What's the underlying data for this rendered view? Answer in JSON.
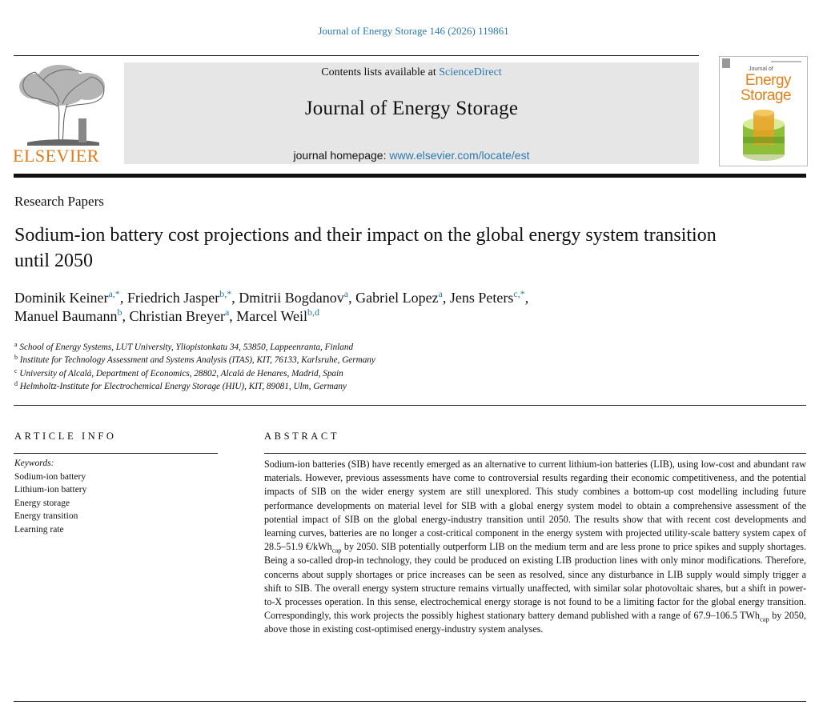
{
  "citation": "Journal of Energy Storage 146 (2026) 119861",
  "header": {
    "publisher_logo_text": "ELSEVIER",
    "contents_prefix": "Contents lists available at ",
    "contents_link": "ScienceDirect",
    "journal_title": "Journal of Energy Storage",
    "homepage_prefix": "journal homepage: ",
    "homepage_link": "www.elsevier.com/locate/est",
    "cover_title_line1": "Energy",
    "cover_title_line2": "Storage",
    "cover_prefix": "Journal of"
  },
  "section": "Research Papers",
  "title": "Sodium-ion battery cost projections and their impact on the global energy system transition until 2050",
  "authors": [
    {
      "name": "Dominik Keiner",
      "sup": "a,*",
      "sep": ", "
    },
    {
      "name": "Friedrich Jasper",
      "sup": "b,*",
      "sep": ", "
    },
    {
      "name": "Dmitrii Bogdanov",
      "sup": "a",
      "sep": ", "
    },
    {
      "name": "Gabriel Lopez",
      "sup": "a",
      "sep": ", "
    },
    {
      "name": "Jens Peters",
      "sup": "c,*",
      "sep": ","
    },
    {
      "name": "Manuel Baumann",
      "sup": "b",
      "sep": ", "
    },
    {
      "name": "Christian Breyer",
      "sup": "a",
      "sep": ", "
    },
    {
      "name": "Marcel Weil",
      "sup": "b,d",
      "sep": ""
    }
  ],
  "affiliations": [
    {
      "sup": "a",
      "text": "School of Energy Systems, LUT University, Yliopistonkatu 34, 53850, Lappeenranta, Finland"
    },
    {
      "sup": "b",
      "text": "Institute for Technology Assessment and Systems Analysis (ITAS), KIT, 76133, Karlsruhe, Germany"
    },
    {
      "sup": "c",
      "text": "University of Alcalá, Department of Economics, 28802, Alcalá de Henares, Madrid, Spain"
    },
    {
      "sup": "d",
      "text": "Helmholtz-Institute for Electrochemical Energy Storage (HIU), KIT, 89081, Ulm, Germany"
    }
  ],
  "article_info": {
    "heading": "ARTICLE INFO",
    "keywords_label": "Keywords:",
    "keywords": [
      "Sodium-ion battery",
      "Lithium-ion battery",
      "Energy storage",
      "Energy transition",
      "Learning rate"
    ]
  },
  "abstract": {
    "heading": "ABSTRACT",
    "part1": "Sodium-ion batteries (SIB) have recently emerged as an alternative to current lithium-ion batteries (LIB), using low-cost and abundant raw materials. However, previous assessments have come to controversial results regarding their economic competitiveness, and the potential impacts of SIB on the wider energy system are still unexplored. This study combines a bottom-up cost modelling including future performance developments on material level for SIB with a global energy system model to obtain a comprehensive assessment of the potential impact of SIB on the global energy-industry transition until 2050. The results show that with recent cost developments and learning curves, batteries are no longer a cost-critical component in the energy system with projected utility-scale battery system capex of 28.5–51.9 €/kWh",
    "sub1": "cap",
    "part2": " by 2050. SIB potentially outperform LIB on the medium term and are less prone to price spikes and supply shortages. Being a so-called drop-in technology, they could be produced on existing LIB production lines with only minor modifications. Therefore, concerns about supply shortages or price increases can be seen as resolved, since any disturbance in LIB supply would simply trigger a shift to SIB. The overall energy system structure remains virtually unaffected, with similar solar photovoltaic shares, but a shift in power-to-X processes operation. In this sense, electrochemical energy storage is not found to be a limiting factor for the global energy transition. Correspondingly, this work projects the possibly highest stationary battery demand published with a range of 67.9–106.5 TWh",
    "sub2": "cap",
    "part3": " by 2050, above those in existing cost-optimised energy-industry system analyses."
  }
}
